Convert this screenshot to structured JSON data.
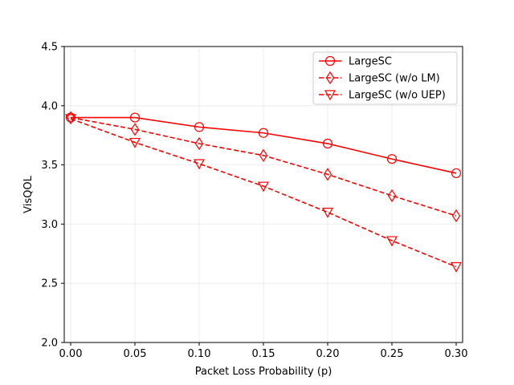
{
  "chart_data": {
    "type": "line",
    "title": "",
    "xlabel": "Packet Loss Probability (p)",
    "ylabel": "VisQOL",
    "x": [
      0.0,
      0.05,
      0.1,
      0.15,
      0.2,
      0.25,
      0.3
    ],
    "xlim": [
      -0.005,
      0.305
    ],
    "ylim": [
      2.0,
      4.5
    ],
    "xticks": [
      "0.00",
      "0.05",
      "0.10",
      "0.15",
      "0.20",
      "0.25",
      "0.30"
    ],
    "yticks": [
      "2.0",
      "2.5",
      "3.0",
      "3.5",
      "4.0",
      "4.5"
    ],
    "grid": true,
    "legend_position": "top-right",
    "series": [
      {
        "name": "LargeSC",
        "values": [
          3.9,
          3.9,
          3.82,
          3.77,
          3.68,
          3.55,
          3.43
        ],
        "color": "#ff0000",
        "linestyle": "solid",
        "marker": "circle"
      },
      {
        "name": "LargeSC (w/o LM)",
        "values": [
          3.9,
          3.8,
          3.68,
          3.58,
          3.42,
          3.24,
          3.07
        ],
        "color": "#ff0000",
        "linestyle": "dashed",
        "marker": "thin-diamond"
      },
      {
        "name": "LargeSC (w/o UEP)",
        "values": [
          3.89,
          3.69,
          3.51,
          3.32,
          3.1,
          2.86,
          2.64
        ],
        "color": "#ff0000",
        "linestyle": "dashed",
        "marker": "triangle-down"
      }
    ]
  }
}
